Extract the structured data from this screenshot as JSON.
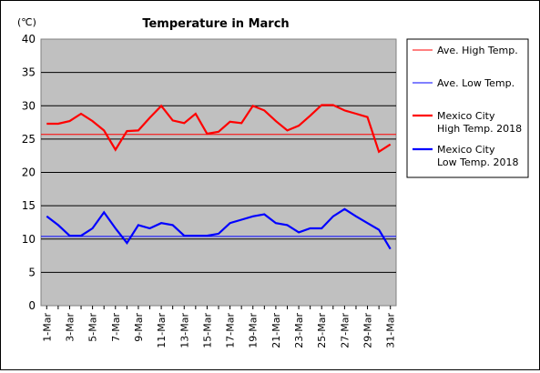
{
  "chart_data": {
    "type": "line",
    "title": "Temperature in March",
    "unit_label": "(℃)",
    "ylim": [
      0,
      40
    ],
    "y_ticks": [
      "0",
      "5",
      "10",
      "15",
      "20",
      "25",
      "30",
      "35",
      "40"
    ],
    "x_tick_labels": [
      "1-Mar",
      "3-Mar",
      "5-Mar",
      "7-Mar",
      "9-Mar",
      "11-Mar",
      "13-Mar",
      "15-Mar",
      "17-Mar",
      "19-Mar",
      "21-Mar",
      "23-Mar",
      "25-Mar",
      "27-Mar",
      "29-Mar",
      "31-Mar"
    ],
    "x_days": [
      1,
      2,
      3,
      4,
      5,
      6,
      7,
      8,
      9,
      10,
      11,
      12,
      13,
      14,
      15,
      16,
      17,
      18,
      19,
      20,
      21,
      22,
      23,
      24,
      25,
      26,
      27,
      28,
      29,
      30,
      31
    ],
    "grid": true,
    "legend_position": "right",
    "series": [
      {
        "name": "Ave. High Temp.",
        "color": "#ff0000",
        "width": 1,
        "constant": 25.7
      },
      {
        "name": "Ave. Low Temp.",
        "color": "#0000ff",
        "width": 1,
        "constant": 10.4
      },
      {
        "name": "Mexico City High Temp. 2018",
        "color": "#ff0000",
        "width": 2.2,
        "values": [
          27.3,
          27.3,
          27.7,
          28.8,
          27.7,
          26.3,
          23.4,
          26.2,
          26.3,
          28.2,
          30.0,
          27.8,
          27.4,
          28.8,
          25.8,
          26.1,
          27.6,
          27.4,
          30.0,
          29.3,
          27.7,
          26.3,
          27.0,
          28.5,
          30.1,
          30.1,
          29.3,
          28.8,
          28.3,
          23.1,
          24.2
        ]
      },
      {
        "name": "Mexico City Low Temp. 2018",
        "color": "#0000ff",
        "width": 2.2,
        "values": [
          13.4,
          12.1,
          10.5,
          10.5,
          11.6,
          14.0,
          11.6,
          9.4,
          12.1,
          11.6,
          12.4,
          12.1,
          10.5,
          10.5,
          10.5,
          10.8,
          12.4,
          12.9,
          13.4,
          13.7,
          12.4,
          12.1,
          11.0,
          11.6,
          11.6,
          13.4,
          14.5,
          13.4,
          12.4,
          11.4,
          8.5
        ]
      }
    ],
    "legend_lines": [
      [
        "Ave. High Temp."
      ],
      [
        "Ave. Low Temp."
      ],
      [
        "Mexico City",
        "High Temp. 2018"
      ],
      [
        "Mexico City",
        "Low Temp. 2018"
      ]
    ]
  }
}
